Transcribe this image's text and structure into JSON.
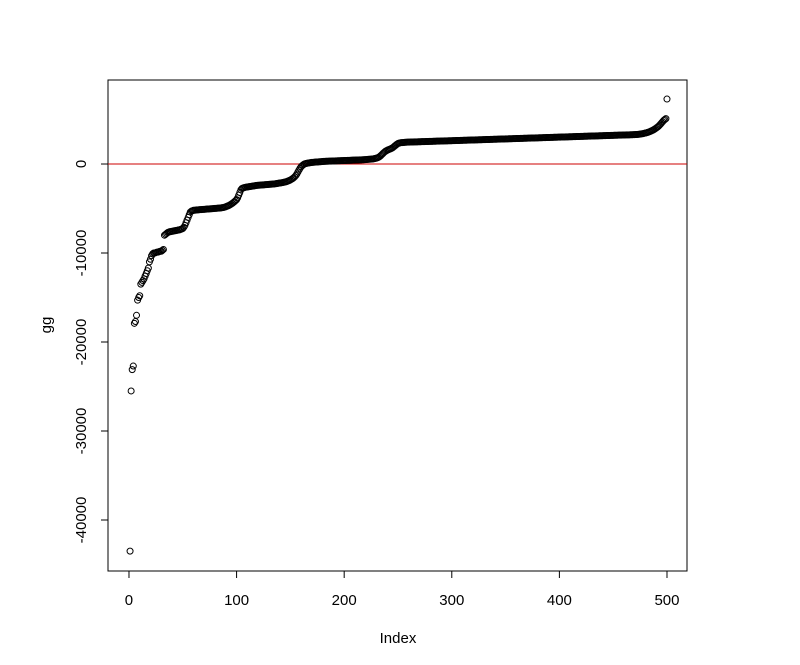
{
  "chart_data": {
    "type": "scatter",
    "xlabel": "Index",
    "ylabel": "gg",
    "xlim": [
      -19.5,
      518.6
    ],
    "ylim": [
      -45730,
      9440
    ],
    "xticks": [
      0,
      100,
      200,
      300,
      400,
      500
    ],
    "yticks": [
      -40000,
      -30000,
      -20000,
      -10000,
      0
    ],
    "hline": 0,
    "hline_color": "#cc0000",
    "color": "#000000",
    "x": [
      1,
      2,
      3,
      4,
      5,
      6,
      7,
      8,
      9,
      10,
      11,
      12,
      13,
      14,
      15,
      16,
      17,
      18,
      19,
      20,
      21,
      22,
      23,
      24,
      25,
      26,
      27,
      28,
      29,
      30,
      31,
      32,
      33,
      34,
      35,
      36,
      37,
      38,
      39,
      40,
      41,
      42,
      43,
      44,
      45,
      46,
      47,
      48,
      49,
      50,
      51,
      52,
      53,
      54,
      55,
      56,
      57,
      58,
      59,
      60,
      61,
      62,
      63,
      64,
      65,
      66,
      67,
      68,
      69,
      70,
      71,
      72,
      73,
      74,
      75,
      76,
      77,
      78,
      79,
      80,
      81,
      82,
      83,
      84,
      85,
      86,
      87,
      88,
      89,
      90,
      91,
      92,
      93,
      94,
      95,
      96,
      97,
      98,
      99,
      100,
      101,
      102,
      103,
      104,
      105,
      106,
      107,
      108,
      109,
      110,
      111,
      112,
      113,
      114,
      115,
      116,
      117,
      118,
      119,
      120,
      121,
      122,
      123,
      124,
      125,
      126,
      127,
      128,
      129,
      130,
      131,
      132,
      133,
      134,
      135,
      136,
      137,
      138,
      139,
      140,
      141,
      142,
      143,
      144,
      145,
      146,
      147,
      148,
      149,
      150,
      151,
      152,
      153,
      154,
      155,
      156,
      157,
      158,
      159,
      160,
      161,
      162,
      163,
      164,
      165,
      166,
      167,
      168,
      169,
      170,
      171,
      172,
      173,
      174,
      175,
      176,
      177,
      178,
      179,
      180,
      181,
      182,
      183,
      184,
      185,
      186,
      187,
      188,
      189,
      190,
      191,
      192,
      193,
      194,
      195,
      196,
      197,
      198,
      199,
      200,
      201,
      202,
      203,
      204,
      205,
      206,
      207,
      208,
      209,
      210,
      211,
      212,
      213,
      214,
      215,
      216,
      217,
      218,
      219,
      220,
      221,
      222,
      223,
      224,
      225,
      226,
      227,
      228,
      229,
      230,
      231,
      232,
      233,
      234,
      235,
      236,
      237,
      238,
      239,
      240,
      241,
      242,
      243,
      244,
      245,
      246,
      247,
      248,
      249,
      250,
      251,
      252,
      253,
      254,
      255,
      256,
      257,
      258,
      259,
      260,
      261,
      262,
      263,
      264,
      265,
      266,
      267,
      268,
      269,
      270,
      271,
      272,
      273,
      274,
      275,
      276,
      277,
      278,
      279,
      280,
      281,
      282,
      283,
      284,
      285,
      286,
      287,
      288,
      289,
      290,
      291,
      292,
      293,
      294,
      295,
      296,
      297,
      298,
      299,
      300,
      301,
      302,
      303,
      304,
      305,
      306,
      307,
      308,
      309,
      310,
      311,
      312,
      313,
      314,
      315,
      316,
      317,
      318,
      319,
      320,
      321,
      322,
      323,
      324,
      325,
      326,
      327,
      328,
      329,
      330,
      331,
      332,
      333,
      334,
      335,
      336,
      337,
      338,
      339,
      340,
      341,
      342,
      343,
      344,
      345,
      346,
      347,
      348,
      349,
      350,
      351,
      352,
      353,
      354,
      355,
      356,
      357,
      358,
      359,
      360,
      361,
      362,
      363,
      364,
      365,
      366,
      367,
      368,
      369,
      370,
      371,
      372,
      373,
      374,
      375,
      376,
      377,
      378,
      379,
      380,
      381,
      382,
      383,
      384,
      385,
      386,
      387,
      388,
      389,
      390,
      391,
      392,
      393,
      394,
      395,
      396,
      397,
      398,
      399,
      400,
      401,
      402,
      403,
      404,
      405,
      406,
      407,
      408,
      409,
      410,
      411,
      412,
      413,
      414,
      415,
      416,
      417,
      418,
      419,
      420,
      421,
      422,
      423,
      424,
      425,
      426,
      427,
      428,
      429,
      430,
      431,
      432,
      433,
      434,
      435,
      436,
      437,
      438,
      439,
      440,
      441,
      442,
      443,
      444,
      445,
      446,
      447,
      448,
      449,
      450,
      451,
      452,
      453,
      454,
      455,
      456,
      457,
      458,
      459,
      460,
      461,
      462,
      463,
      464,
      465,
      466,
      467,
      468,
      469,
      470,
      471,
      472,
      473,
      474,
      475,
      476,
      477,
      478,
      479,
      480,
      481,
      482,
      483,
      484,
      485,
      486,
      487,
      488,
      489,
      490,
      491,
      492,
      493,
      494,
      495,
      496,
      497,
      498,
      499,
      500
    ],
    "values": [
      -43500,
      -25500,
      -23100,
      -22700,
      -17900,
      -17700,
      -17000,
      -15300,
      -15000,
      -14800,
      -13500,
      -13300,
      -13100,
      -12900,
      -12600,
      -12300,
      -12000,
      -11700,
      -11000,
      -10700,
      -10300,
      -10100,
      -10000,
      -10000,
      -9950,
      -9900,
      -9900,
      -9850,
      -9800,
      -9800,
      -9700,
      -9600,
      -8000,
      -7900,
      -7800,
      -7700,
      -7650,
      -7600,
      -7600,
      -7550,
      -7550,
      -7500,
      -7500,
      -7450,
      -7450,
      -7400,
      -7400,
      -7350,
      -7300,
      -7250,
      -7100,
      -6900,
      -6600,
      -6300,
      -6000,
      -5700,
      -5400,
      -5300,
      -5250,
      -5200,
      -5200,
      -5180,
      -5160,
      -5150,
      -5140,
      -5130,
      -5120,
      -5110,
      -5100,
      -5090,
      -5080,
      -5070,
      -5060,
      -5050,
      -5040,
      -5030,
      -5020,
      -5010,
      -5000,
      -4990,
      -4980,
      -4970,
      -4960,
      -4950,
      -4940,
      -4920,
      -4900,
      -4880,
      -4850,
      -4800,
      -4750,
      -4700,
      -4650,
      -4580,
      -4500,
      -4420,
      -4330,
      -4230,
      -4120,
      -4000,
      -3800,
      -3500,
      -3200,
      -2900,
      -2750,
      -2700,
      -2650,
      -2620,
      -2600,
      -2580,
      -2560,
      -2540,
      -2520,
      -2500,
      -2480,
      -2460,
      -2440,
      -2420,
      -2400,
      -2390,
      -2380,
      -2370,
      -2360,
      -2350,
      -2340,
      -2330,
      -2320,
      -2310,
      -2300,
      -2290,
      -2280,
      -2270,
      -2260,
      -2250,
      -2240,
      -2220,
      -2200,
      -2180,
      -2160,
      -2140,
      -2120,
      -2100,
      -2080,
      -2050,
      -2020,
      -1990,
      -1950,
      -1900,
      -1850,
      -1790,
      -1720,
      -1640,
      -1550,
      -1440,
      -1300,
      -1120,
      -900,
      -680,
      -480,
      -300,
      -180,
      -80,
      0,
      40,
      70,
      100,
      120,
      140,
      160,
      180,
      190,
      200,
      210,
      220,
      230,
      240,
      250,
      260,
      270,
      280,
      290,
      300,
      305,
      310,
      315,
      320,
      325,
      330,
      335,
      340,
      345,
      350,
      355,
      360,
      365,
      370,
      375,
      380,
      385,
      390,
      395,
      400,
      405,
      410,
      415,
      420,
      425,
      430,
      435,
      440,
      445,
      450,
      455,
      460,
      465,
      470,
      475,
      480,
      490,
      500,
      510,
      520,
      530,
      540,
      550,
      560,
      580,
      600,
      630,
      660,
      700,
      760,
      840,
      940,
      1060,
      1180,
      1300,
      1400,
      1480,
      1550,
      1600,
      1650,
      1700,
      1760,
      1830,
      1920,
      2020,
      2120,
      2220,
      2300,
      2350,
      2380,
      2400,
      2410,
      2420,
      2430,
      2440,
      2450,
      2455,
      2460,
      2465,
      2469,
      2473,
      2477,
      2481,
      2485,
      2489,
      2493,
      2497,
      2501,
      2505,
      2509,
      2513,
      2517,
      2521,
      2525,
      2529,
      2533,
      2537,
      2541,
      2545,
      2549,
      2553,
      2557,
      2561,
      2565,
      2569,
      2573,
      2577,
      2581,
      2585,
      2589,
      2593,
      2597,
      2601,
      2605,
      2609,
      2613,
      2617,
      2621,
      2625,
      2629,
      2633,
      2637,
      2641,
      2645,
      2649,
      2653,
      2657,
      2661,
      2665,
      2669,
      2673,
      2677,
      2681,
      2685,
      2689,
      2693,
      2697,
      2701,
      2705,
      2709,
      2713,
      2717,
      2721,
      2725,
      2729,
      2733,
      2737,
      2741,
      2745,
      2749,
      2753,
      2757,
      2761,
      2765,
      2769,
      2773,
      2777,
      2781,
      2785,
      2789,
      2793,
      2797,
      2801,
      2805,
      2809,
      2813,
      2817,
      2821,
      2825,
      2829,
      2833,
      2837,
      2841,
      2845,
      2849,
      2853,
      2857,
      2861,
      2865,
      2869,
      2873,
      2877,
      2881,
      2885,
      2889,
      2893,
      2897,
      2901,
      2905,
      2909,
      2913,
      2917,
      2921,
      2925,
      2929,
      2933,
      2937,
      2941,
      2945,
      2949,
      2953,
      2957,
      2961,
      2965,
      2969,
      2973,
      2977,
      2981,
      2985,
      2989,
      2993,
      2997,
      3001,
      3005,
      3009,
      3013,
      3017,
      3021,
      3025,
      3029,
      3033,
      3037,
      3041,
      3045,
      3049,
      3053,
      3057,
      3061,
      3065,
      3069,
      3073,
      3077,
      3081,
      3085,
      3089,
      3093,
      3097,
      3101,
      3105,
      3109,
      3113,
      3117,
      3121,
      3125,
      3129,
      3133,
      3137,
      3141,
      3145,
      3149,
      3153,
      3157,
      3161,
      3165,
      3169,
      3173,
      3177,
      3181,
      3185,
      3189,
      3193,
      3197,
      3201,
      3205,
      3209,
      3213,
      3217,
      3221,
      3225,
      3229,
      3233,
      3237,
      3241,
      3245,
      3249,
      3253,
      3257,
      3261,
      3265,
      3269,
      3273,
      3277,
      3281,
      3285,
      3289,
      3293,
      3297,
      3301,
      3310,
      3320,
      3330,
      3345,
      3360,
      3380,
      3400,
      3420,
      3450,
      3480,
      3510,
      3550,
      3590,
      3640,
      3690,
      3750,
      3810,
      3880,
      3960,
      4040,
      4130,
      4230,
      4350,
      4480,
      4620,
      4760,
      4900,
      5000,
      5100,
      7300
    ]
  }
}
